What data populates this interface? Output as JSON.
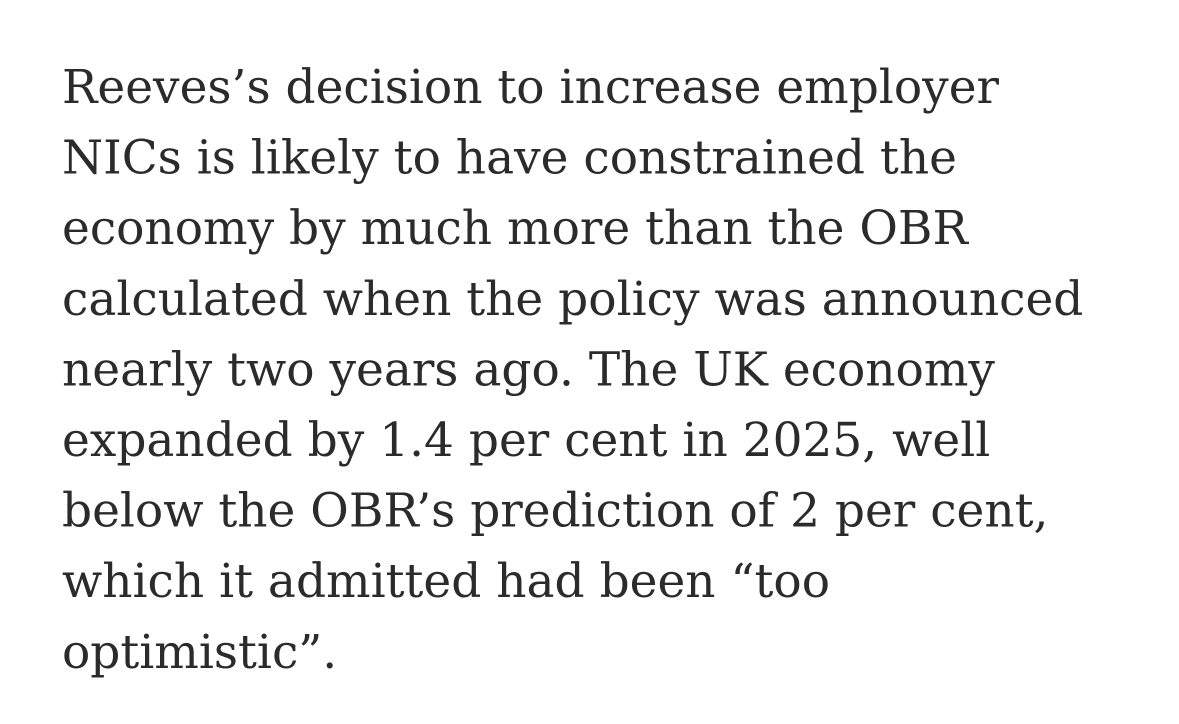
{
  "paragraph": {
    "lines": [
      "Reeves’s decision to increase employer",
      "NICs is likely to have constrained the",
      "economy by much more than the OBR",
      "calculated when the policy was announced",
      "nearly two years ago. The UK economy",
      "expanded by 1.4 per cent in 2025, well",
      "below the OBR’s prediction of 2 per cent,",
      "which it admitted had been “too",
      "optimistic”."
    ]
  }
}
